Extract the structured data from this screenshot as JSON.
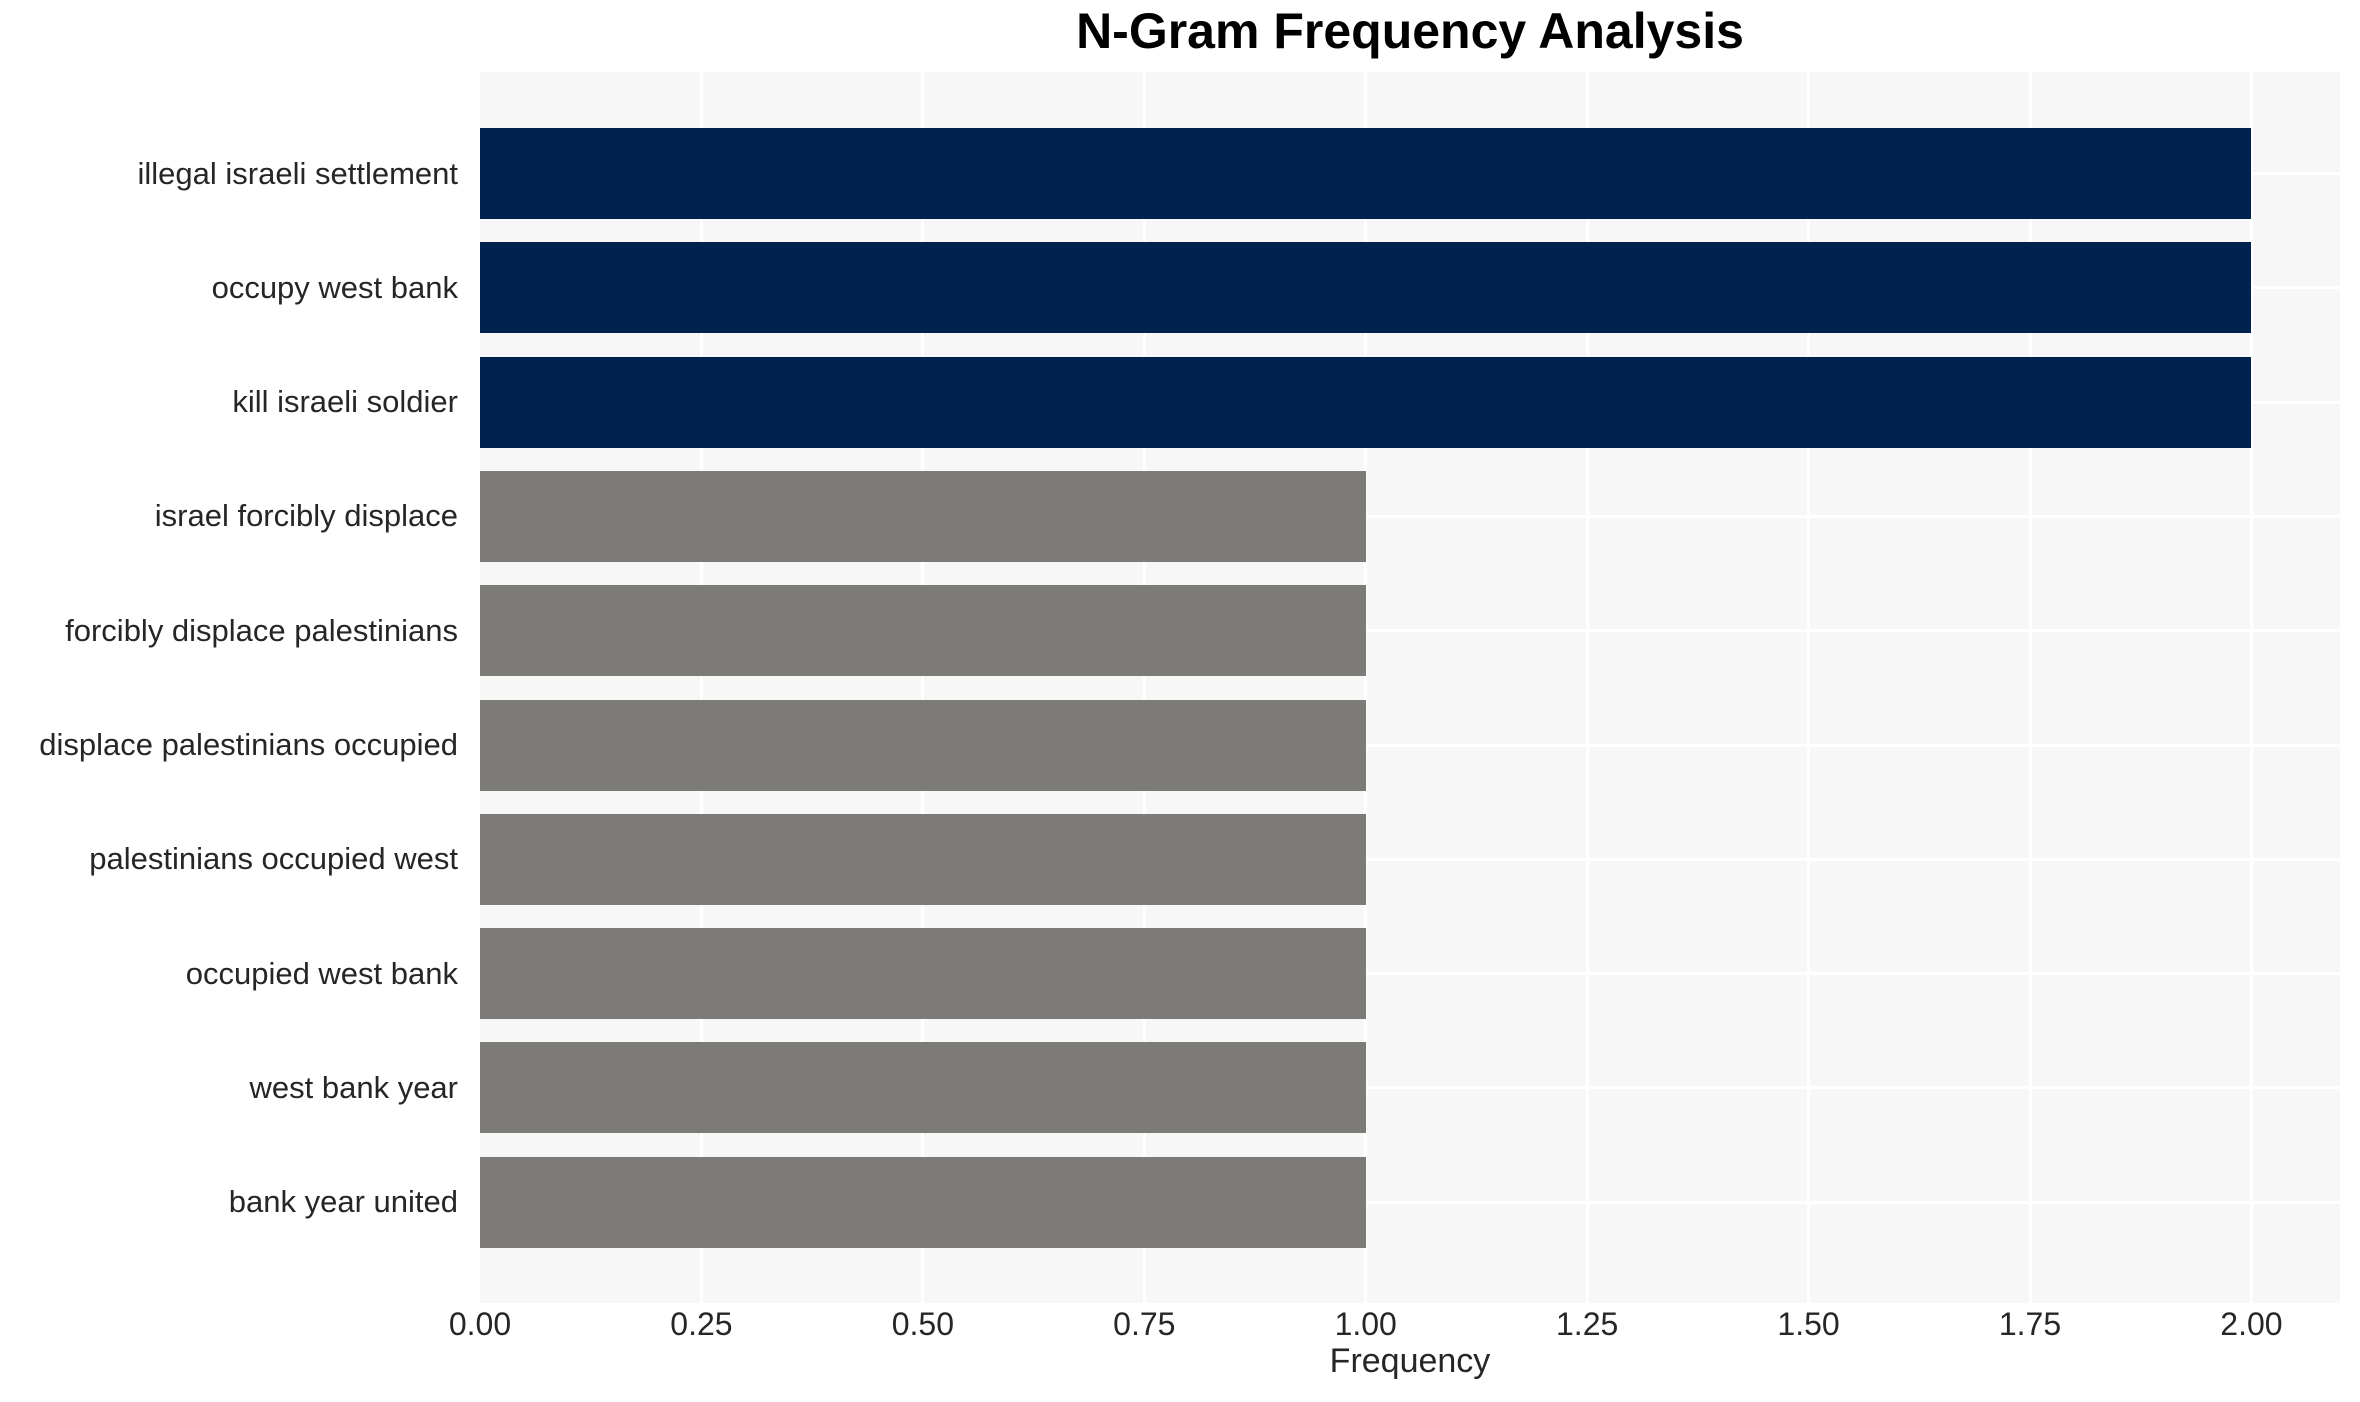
{
  "page": {
    "background_color": "#ffffff"
  },
  "chart_data": {
    "type": "bar",
    "orientation": "horizontal",
    "title": "N-Gram Frequency Analysis",
    "xlabel": "Frequency",
    "ylabel": "",
    "categories": [
      "illegal israeli settlement",
      "occupy west bank",
      "kill israeli soldier",
      "israel forcibly displace",
      "forcibly displace palestinians",
      "displace palestinians occupied",
      "palestinians occupied west",
      "occupied west bank",
      "west bank year",
      "bank year united"
    ],
    "values": [
      2,
      2,
      2,
      1,
      1,
      1,
      1,
      1,
      1,
      1
    ],
    "bar_colors": [
      "#00224e",
      "#00224e",
      "#00224e",
      "#7c7b78",
      "#7c7b78",
      "#7c7b78",
      "#7c7b78",
      "#7c7b78",
      "#7c7b78",
      "#7c7b78"
    ],
    "xlim": [
      0,
      2.1
    ],
    "x_ticks": [
      0.25,
      0.5,
      0.75,
      1.0,
      1.25,
      1.5,
      1.75,
      2.0
    ],
    "x_tick_labels": [
      "0.00",
      "0.25",
      "0.50",
      "0.75",
      "1.00",
      "1.25",
      "1.50",
      "1.75",
      "2.00"
    ],
    "x_tick_values": [
      0,
      0.25,
      0.5,
      0.75,
      1.0,
      1.25,
      1.5,
      1.75,
      2.0
    ],
    "grid": true,
    "legend_position": "none",
    "colors": {
      "bar_frequency_2": "#00224e",
      "bar_frequency_1": "#7c7b78",
      "plot_background": "#f7f7f7",
      "gridline": "#ffffff",
      "tick_text": "#262626",
      "title_text": "#000000"
    }
  }
}
